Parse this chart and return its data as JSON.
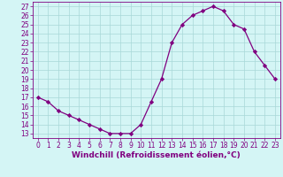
{
  "x": [
    0,
    1,
    2,
    3,
    4,
    5,
    6,
    7,
    8,
    9,
    10,
    11,
    12,
    13,
    14,
    15,
    16,
    17,
    18,
    19,
    20,
    21,
    22,
    23
  ],
  "y": [
    17,
    16.5,
    15.5,
    15,
    14.5,
    14,
    13.5,
    13,
    13,
    13,
    14,
    16.5,
    19,
    23,
    25,
    26,
    26.5,
    27,
    26.5,
    25,
    24.5,
    22,
    20.5,
    19
  ],
  "xlabel": "Windchill (Refroidissement éolien,°C)",
  "xlim": [
    -0.5,
    23.5
  ],
  "ylim": [
    12.5,
    27.5
  ],
  "yticks": [
    13,
    14,
    15,
    16,
    17,
    18,
    19,
    20,
    21,
    22,
    23,
    24,
    25,
    26,
    27
  ],
  "xticks": [
    0,
    1,
    2,
    3,
    4,
    5,
    6,
    7,
    8,
    9,
    10,
    11,
    12,
    13,
    14,
    15,
    16,
    17,
    18,
    19,
    20,
    21,
    22,
    23
  ],
  "line_color": "#800080",
  "marker": "D",
  "marker_size": 2.2,
  "bg_color": "#d4f5f5",
  "grid_color": "#a8d8d8",
  "tick_color": "#800080",
  "label_color": "#800080",
  "font_size_tick": 5.5,
  "font_size_xlabel": 6.5
}
